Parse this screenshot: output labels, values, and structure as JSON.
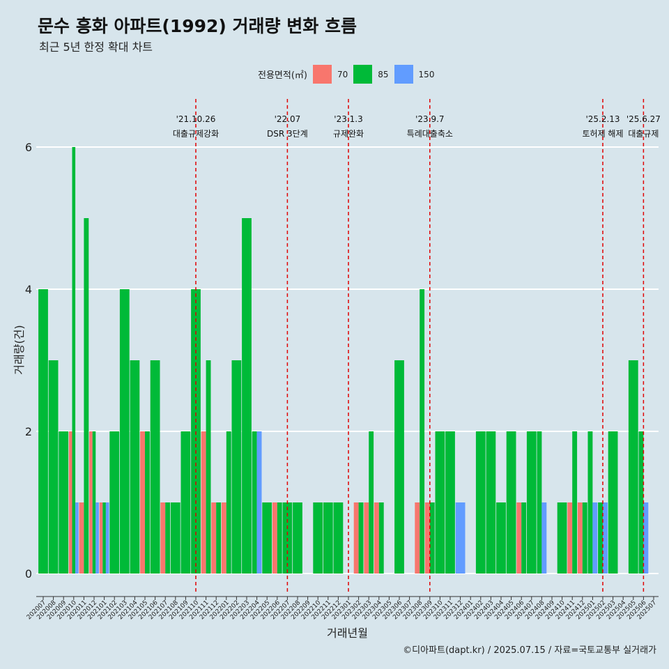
{
  "title": "문수 흥화 아파트(1992) 거래량 변화 흐름",
  "subtitle": "최근 5년 한정 확대 차트",
  "caption": "©디아파트(dapt.kr) / 2025.07.15 / 자료=국토교통부 실거래가",
  "legend": {
    "title": "전용면적(㎡)",
    "items": [
      {
        "label": "70",
        "color": "#f8766d"
      },
      {
        "label": "85",
        "color": "#00ba38"
      },
      {
        "label": "150",
        "color": "#619cff"
      }
    ]
  },
  "chart_data": {
    "type": "bar",
    "bar_mode": "dodge",
    "xlabel": "거래년월",
    "ylabel": "거래량(건)",
    "ylim": [
      0,
      6.6
    ],
    "yticks": [
      0,
      2,
      4,
      6
    ],
    "grid": true,
    "legend_position": "top",
    "categories": [
      "202007",
      "202008",
      "202009",
      "202010",
      "202011",
      "202012",
      "202101",
      "202102",
      "202103",
      "202104",
      "202105",
      "202106",
      "202107",
      "202108",
      "202109",
      "202110",
      "202111",
      "202112",
      "202201",
      "202202",
      "202203",
      "202204",
      "202205",
      "202206",
      "202207",
      "202208",
      "202209",
      "202210",
      "202211",
      "202212",
      "202301",
      "202302",
      "202303",
      "202304",
      "202305",
      "202306",
      "202307",
      "202308",
      "202309",
      "202310",
      "202311",
      "202312",
      "202401",
      "202402",
      "202403",
      "202404",
      "202405",
      "202406",
      "202407",
      "202408",
      "202409",
      "202410",
      "202411",
      "202412",
      "202501",
      "202502",
      "202503",
      "202504",
      "202505",
      "202506",
      "202507"
    ],
    "series": [
      {
        "name": "70",
        "color": "#f8766d",
        "values": [
          0,
          0,
          0,
          2,
          1,
          2,
          1,
          0,
          0,
          0,
          2,
          0,
          1,
          0,
          0,
          0,
          2,
          1,
          1,
          0,
          0,
          0,
          0,
          1,
          0,
          0,
          0,
          0,
          0,
          0,
          0,
          1,
          1,
          1,
          0,
          0,
          0,
          1,
          1,
          0,
          0,
          0,
          0,
          0,
          0,
          0,
          0,
          1,
          0,
          0,
          0,
          0,
          1,
          1,
          0,
          0,
          0,
          0,
          0,
          0,
          0
        ]
      },
      {
        "name": "85",
        "color": "#00ba38",
        "values": [
          4,
          3,
          2,
          6,
          5,
          2,
          1,
          2,
          4,
          3,
          2,
          3,
          1,
          1,
          2,
          4,
          3,
          1,
          2,
          3,
          5,
          2,
          1,
          1,
          1,
          1,
          0,
          1,
          1,
          1,
          0,
          1,
          2,
          1,
          0,
          3,
          0,
          4,
          1,
          2,
          2,
          0,
          0,
          2,
          2,
          1,
          2,
          1,
          2,
          2,
          0,
          1,
          2,
          1,
          2,
          1,
          2,
          0,
          3,
          2,
          0
        ]
      },
      {
        "name": "150",
        "color": "#619cff",
        "values": [
          0,
          0,
          0,
          1,
          0,
          1,
          1,
          0,
          0,
          0,
          0,
          0,
          0,
          0,
          0,
          0,
          0,
          0,
          0,
          0,
          0,
          2,
          0,
          0,
          0,
          0,
          0,
          0,
          0,
          0,
          0,
          0,
          0,
          0,
          0,
          0,
          0,
          0,
          0,
          0,
          0,
          1,
          0,
          0,
          0,
          0,
          0,
          0,
          0,
          1,
          0,
          0,
          0,
          0,
          1,
          1,
          0,
          0,
          0,
          1,
          0
        ]
      }
    ],
    "events": [
      {
        "category": "202110",
        "date": "'21.10.26",
        "label": "대출규제강화"
      },
      {
        "category": "202207",
        "date": "'22.07",
        "label": "DSR 3단계"
      },
      {
        "category": "202301",
        "date": "'23.1.3",
        "label": "규제완화"
      },
      {
        "category": "202309",
        "date": "'23.9.7",
        "label": "특례대출축소"
      },
      {
        "category": "202502",
        "date": "'25.2.13",
        "label": "토허제 해제"
      },
      {
        "category": "202506",
        "date": "'25.6.27",
        "label": "대출규제"
      }
    ]
  }
}
